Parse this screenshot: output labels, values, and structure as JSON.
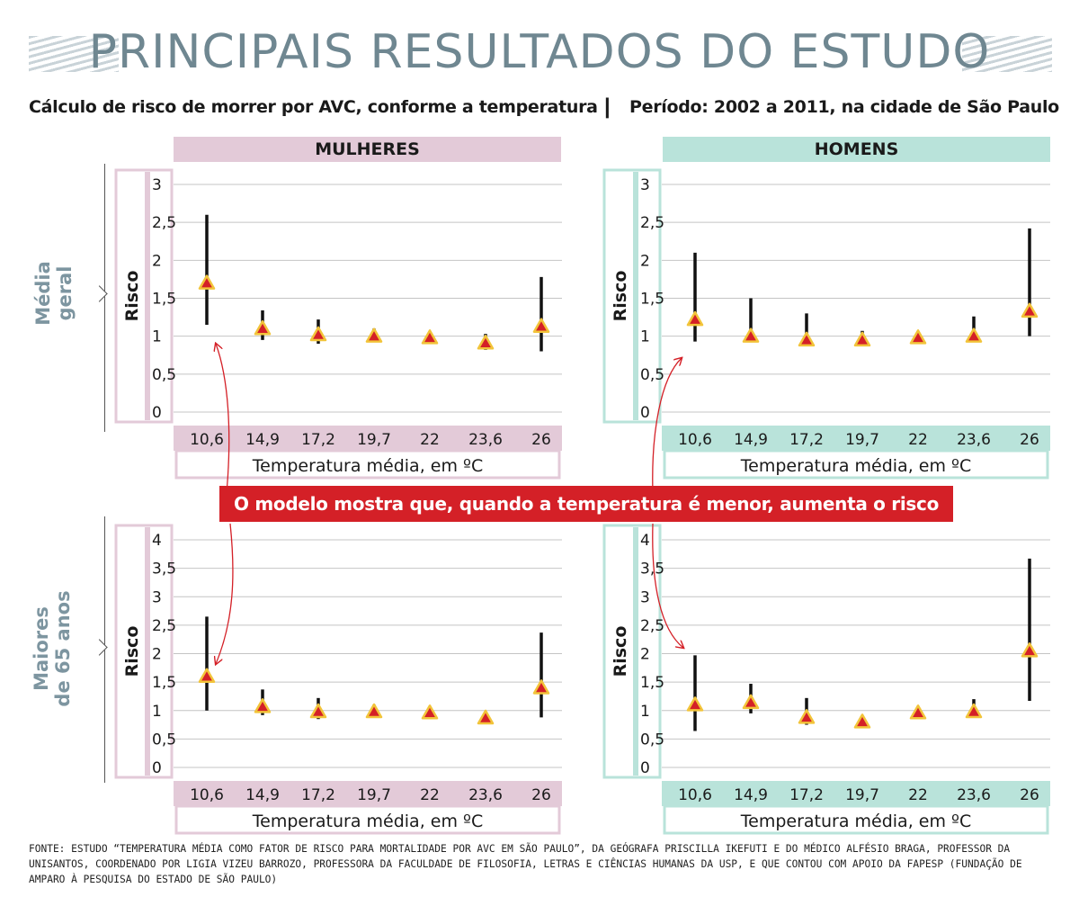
{
  "title": "PRINCIPAIS RESULTADOS DO ESTUDO",
  "subtitle_left": "Cálculo de risco de morrer por AVC, conforme a temperatura",
  "subtitle_separator": "|",
  "subtitle_right": "Período: 2002 a 2011, na cidade de São Paulo",
  "headers": {
    "women": "MULHERES",
    "men": "HOMENS"
  },
  "row_labels": {
    "row1": [
      "Média",
      "geral"
    ],
    "row2": [
      "Maiores",
      "de 65 anos"
    ]
  },
  "callout": "O modelo mostra que, quando a temperatura é menor, aumenta o risco",
  "source": "FONTE: ESTUDO “TEMPERATURA MÉDIA COMO FATOR DE RISCO PARA MORTALIDADE POR AVC EM SÃO PAULO”, DA  GEÓGRAFA PRISCILLA IKEFUTI E DO MÉDICO ALFÉSIO BRAGA, PROFESSOR DA UNISANTOS, COORDENADO POR LIGIA VIZEU BARROZO, PROFESSORA DA FACULDADE DE FILOSOFIA, LETRAS E CIÊNCIAS HUMANAS DA USP, E QUE CONTOU COM APOIO DA FAPESP (FUNDAÇÃO DE AMPARO À PESQUISA DO ESTADO DE SÃO PAULO)",
  "colors": {
    "women": "#e3cad8",
    "men": "#b9e3da",
    "accent": "#d42027",
    "marker_fill": "#d42027",
    "marker_stroke": "#f2c43a",
    "title": "#6f8791"
  },
  "chart_data": [
    {
      "id": "women-general",
      "type": "scatter",
      "group": "MULHERES",
      "row": "Média geral",
      "categories": [
        "10,6",
        "14,9",
        "17,2",
        "19,7",
        "22",
        "23,6",
        "26"
      ],
      "values": [
        1.7,
        1.1,
        1.02,
        1.0,
        0.98,
        0.91,
        1.13
      ],
      "ci_low": [
        1.15,
        0.95,
        0.9,
        0.92,
        null,
        0.82,
        0.8
      ],
      "ci_high": [
        2.6,
        1.34,
        1.22,
        1.1,
        null,
        1.03,
        1.78
      ],
      "yticks": [
        "0",
        "0,5",
        "1",
        "1,5",
        "2",
        "2,5",
        "3"
      ],
      "ylim": [
        0,
        3
      ],
      "ylabel": "Risco",
      "xlabel": "Temperatura média, em ºC"
    },
    {
      "id": "men-general",
      "type": "scatter",
      "group": "HOMENS",
      "row": "Média geral",
      "categories": [
        "10,6",
        "14,9",
        "17,2",
        "19,7",
        "22",
        "23,6",
        "26"
      ],
      "values": [
        1.22,
        1.0,
        0.95,
        0.95,
        0.98,
        1.0,
        1.33
      ],
      "ci_low": [
        0.93,
        null,
        null,
        null,
        null,
        null,
        1.0
      ],
      "ci_high": [
        2.1,
        1.5,
        1.3,
        1.07,
        null,
        1.26,
        2.42
      ],
      "yticks": [
        "0",
        "0,5",
        "1",
        "1,5",
        "2",
        "2,5",
        "3"
      ],
      "ylim": [
        0,
        3
      ],
      "ylabel": "Risco",
      "xlabel": "Temperatura média, em ºC"
    },
    {
      "id": "women-65",
      "type": "scatter",
      "group": "MULHERES",
      "row": "Maiores de 65 anos",
      "categories": [
        "10,6",
        "14,9",
        "17,2",
        "19,7",
        "22",
        "23,6",
        "26"
      ],
      "values": [
        1.6,
        1.07,
        0.98,
        0.98,
        0.96,
        0.87,
        1.4
      ],
      "ci_low": [
        1.0,
        0.92,
        0.85,
        0.92,
        null,
        null,
        0.88
      ],
      "ci_high": [
        2.65,
        1.37,
        1.22,
        1.1,
        null,
        null,
        2.37
      ],
      "yticks": [
        "0",
        "0,5",
        "1",
        "1,5",
        "2",
        "2,5",
        "3",
        "3,5",
        "4"
      ],
      "ylim": [
        0,
        4
      ],
      "ylabel": "Risco",
      "xlabel": "Temperatura média, em ºC"
    },
    {
      "id": "men-65",
      "type": "scatter",
      "group": "HOMENS",
      "row": "Maiores de 65 anos",
      "categories": [
        "10,6",
        "14,9",
        "17,2",
        "19,7",
        "22",
        "23,6",
        "26"
      ],
      "values": [
        1.1,
        1.14,
        0.88,
        0.8,
        0.96,
        0.98,
        2.05
      ],
      "ci_low": [
        0.64,
        0.95,
        0.75,
        null,
        null,
        null,
        1.17
      ],
      "ci_high": [
        1.97,
        1.47,
        1.22,
        null,
        null,
        1.2,
        3.67
      ],
      "yticks": [
        "0",
        "0,5",
        "1",
        "1,5",
        "2",
        "2,5",
        "3",
        "3,5",
        "4"
      ],
      "ylim": [
        0,
        4
      ],
      "ylabel": "Risco",
      "xlabel": "Temperatura média, em ºC"
    }
  ]
}
